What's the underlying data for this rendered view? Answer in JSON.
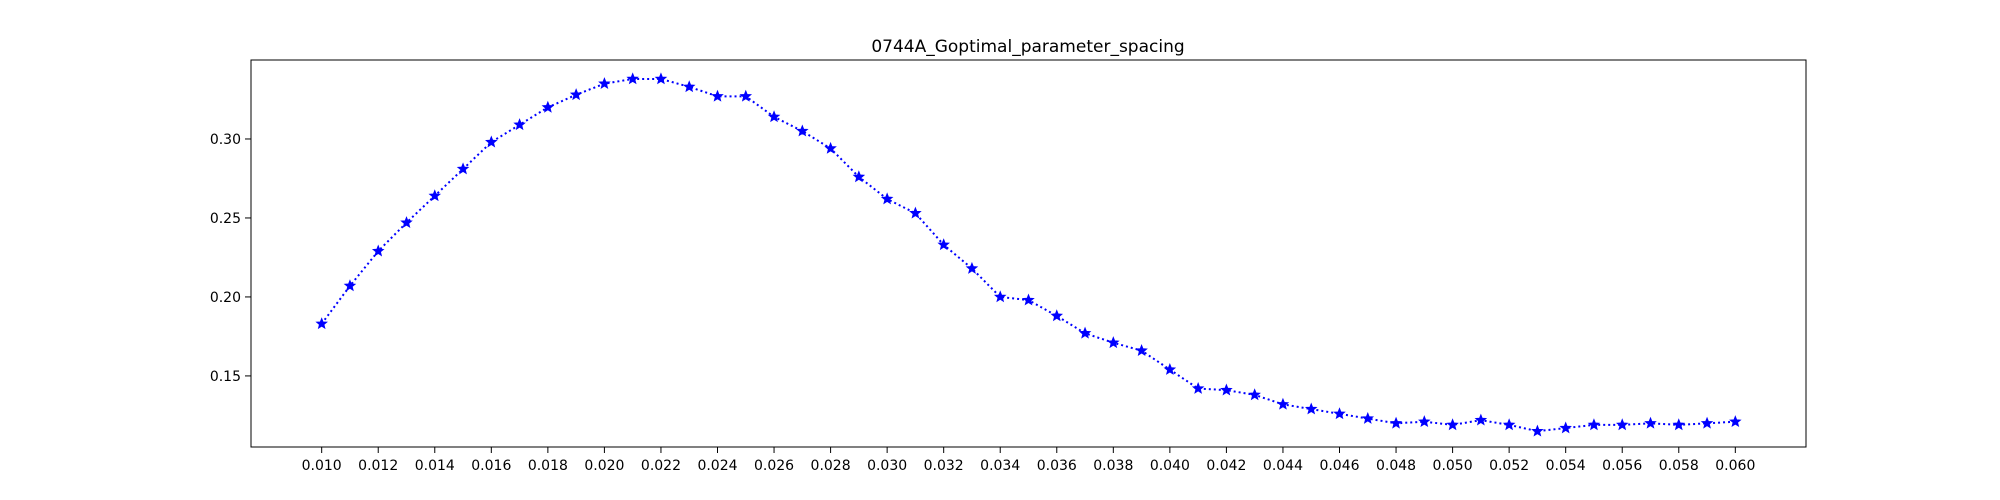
{
  "chart_data": {
    "type": "line",
    "title": "0744A_Goptimal_parameter_spacing",
    "xlabel": "",
    "ylabel": "",
    "xlim": [
      0.0075,
      0.0625
    ],
    "ylim": [
      0.105,
      0.35
    ],
    "grid": false,
    "legend": "none",
    "line_style": "dotted",
    "marker": "star",
    "color": "#0000ff",
    "x_ticks": [
      "0.010",
      "0.012",
      "0.014",
      "0.016",
      "0.018",
      "0.020",
      "0.022",
      "0.024",
      "0.026",
      "0.028",
      "0.030",
      "0.032",
      "0.034",
      "0.036",
      "0.038",
      "0.040",
      "0.042",
      "0.044",
      "0.046",
      "0.048",
      "0.050",
      "0.052",
      "0.054",
      "0.056",
      "0.058",
      "0.060"
    ],
    "y_ticks": [
      "0.15",
      "0.20",
      "0.25",
      "0.30"
    ],
    "x": [
      0.01,
      0.011,
      0.012,
      0.013,
      0.014,
      0.015,
      0.016,
      0.017,
      0.018,
      0.019,
      0.02,
      0.021,
      0.022,
      0.023,
      0.024,
      0.025,
      0.026,
      0.027,
      0.028,
      0.029,
      0.03,
      0.031,
      0.032,
      0.033,
      0.034,
      0.035,
      0.036,
      0.037,
      0.038,
      0.039,
      0.04,
      0.041,
      0.042,
      0.043,
      0.044,
      0.045,
      0.046,
      0.047,
      0.048,
      0.049,
      0.05,
      0.051,
      0.052,
      0.053,
      0.054,
      0.055,
      0.056,
      0.057,
      0.058,
      0.059,
      0.06
    ],
    "y": [
      0.183,
      0.207,
      0.229,
      0.247,
      0.264,
      0.281,
      0.298,
      0.309,
      0.32,
      0.328,
      0.335,
      0.338,
      0.338,
      0.333,
      0.327,
      0.327,
      0.314,
      0.305,
      0.294,
      0.276,
      0.262,
      0.253,
      0.233,
      0.218,
      0.2,
      0.198,
      0.188,
      0.177,
      0.171,
      0.166,
      0.154,
      0.142,
      0.141,
      0.138,
      0.132,
      0.129,
      0.126,
      0.123,
      0.12,
      0.121,
      0.119,
      0.122,
      0.119,
      0.115,
      0.117,
      0.119,
      0.119,
      0.12,
      0.119,
      0.12,
      0.121
    ]
  }
}
